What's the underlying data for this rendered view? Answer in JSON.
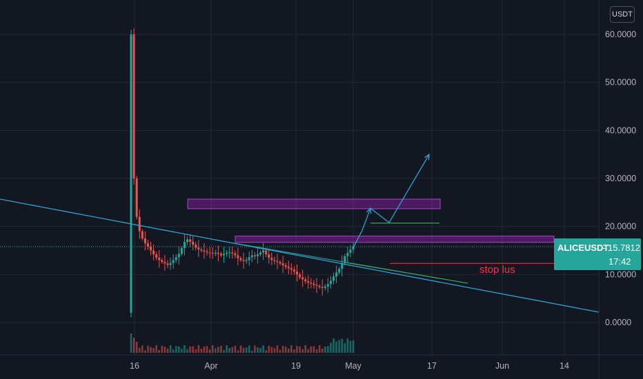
{
  "quote_currency": "USDT",
  "colors": {
    "background": "#131722",
    "grid": "#232834",
    "up": "#26a69a",
    "down": "#ef5350",
    "trendline": "#29a4d8",
    "zone": "#8e24aa",
    "stop": "#ef3030",
    "target": "#4caf50",
    "label_bg": "#26a69a"
  },
  "chart_data": {
    "type": "candlestick",
    "symbol": "ALICEUSDT",
    "last_price": "15.7812",
    "countdown": "17:42",
    "y_ticks": [
      "60.0000",
      "50.0000",
      "40.0000",
      "30.0000",
      "20.0000",
      "10.0000",
      "0.0000"
    ],
    "x_ticks": [
      "16",
      "Apr",
      "19",
      "May",
      "17",
      "Jun",
      "14"
    ],
    "ylim": [
      -6,
      64
    ],
    "annotations": {
      "stop_label": "stop lus",
      "stop_level": 12.3,
      "zone_upper": [
        23.7,
        25.7
      ],
      "zone_lower": [
        16.7,
        18.0
      ],
      "target_level": 20.7,
      "projected_path": [
        15.6,
        19.2,
        23.8,
        20.8,
        35.0
      ]
    },
    "price_series": [
      60.0,
      30.0,
      22.0,
      19.0,
      17.5,
      16.5,
      15.8,
      15.0,
      14.2,
      13.5,
      13.0,
      12.6,
      12.3,
      12.0,
      12.4,
      13.0,
      13.6,
      14.3,
      15.5,
      16.8,
      17.3,
      16.8,
      16.2,
      15.6,
      15.2,
      15.0,
      14.8,
      14.6,
      14.5,
      14.4,
      14.5,
      14.3,
      14.0,
      14.3,
      14.5,
      14.6,
      14.4,
      14.0,
      13.4,
      13.0,
      12.8,
      13.0,
      13.6,
      14.0,
      13.8,
      14.2,
      14.6,
      15.0,
      14.2,
      13.5,
      13.0,
      12.8,
      12.6,
      12.3,
      11.9,
      11.6,
      11.3,
      11.0,
      10.6,
      10.0,
      9.4,
      9.0,
      8.6,
      8.3,
      8.1,
      7.8,
      7.6,
      7.4,
      7.2,
      7.5,
      8.0,
      8.7,
      9.6,
      10.4,
      11.2,
      12.4,
      13.8,
      14.5,
      15.2,
      15.8
    ]
  }
}
